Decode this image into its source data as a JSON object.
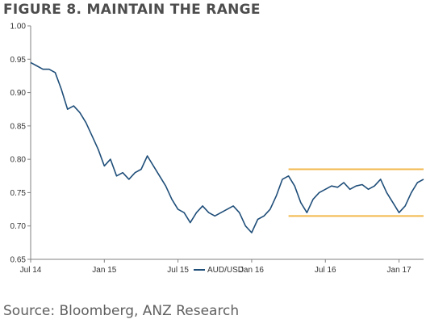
{
  "title": "FIGURE 8. MAINTAIN THE RANGE",
  "source": "Source: Bloomberg, ANZ Research",
  "colors": {
    "series": "#1f4e79",
    "range_band": "#f2b84b",
    "axis": "#808080"
  },
  "chart_data": {
    "type": "line",
    "title": "FIGURE 8. MAINTAIN THE RANGE",
    "xlabel": "",
    "ylabel": "",
    "ylim": [
      0.65,
      1.0
    ],
    "yticks": [
      1.0,
      0.95,
      0.9,
      0.85,
      0.8,
      0.75,
      0.7,
      0.65
    ],
    "ytick_labels": [
      "1.00",
      "0.95",
      "0.90",
      "0.85",
      "0.80",
      "0.75",
      "0.70",
      "0.65"
    ],
    "xlim": [
      0,
      32
    ],
    "xticks": [
      0,
      6,
      12,
      18,
      24,
      30
    ],
    "xtick_labels": [
      "Jul 14",
      "Jan 15",
      "Jul 15",
      "Jan 16",
      "Jul 16",
      "Jan 17"
    ],
    "x_unit": "months since Jul 2014",
    "grid": false,
    "legend": "bottom-center",
    "series": [
      {
        "name": "AUD/USD",
        "x": [
          0,
          0.5,
          1,
          1.5,
          2,
          2.5,
          3,
          3.5,
          4,
          4.5,
          5,
          5.5,
          6,
          6.5,
          7,
          7.5,
          8,
          8.5,
          9,
          9.5,
          10,
          10.5,
          11,
          11.5,
          12,
          12.5,
          13,
          13.5,
          14,
          14.5,
          15,
          15.5,
          16,
          16.5,
          17,
          17.5,
          18,
          18.5,
          19,
          19.5,
          20,
          20.5,
          21,
          21.5,
          22,
          22.5,
          23,
          23.5,
          24,
          24.5,
          25,
          25.5,
          26,
          26.5,
          27,
          27.5,
          28,
          28.5,
          29,
          29.5,
          30,
          30.5,
          31,
          31.5,
          32
        ],
        "values": [
          0.945,
          0.94,
          0.935,
          0.935,
          0.93,
          0.905,
          0.875,
          0.88,
          0.87,
          0.855,
          0.835,
          0.815,
          0.79,
          0.8,
          0.775,
          0.78,
          0.77,
          0.78,
          0.785,
          0.805,
          0.79,
          0.775,
          0.76,
          0.74,
          0.725,
          0.72,
          0.705,
          0.72,
          0.73,
          0.72,
          0.715,
          0.72,
          0.725,
          0.73,
          0.72,
          0.7,
          0.69,
          0.71,
          0.715,
          0.725,
          0.745,
          0.77,
          0.775,
          0.76,
          0.735,
          0.72,
          0.74,
          0.75,
          0.755,
          0.76,
          0.758,
          0.765,
          0.755,
          0.76,
          0.762,
          0.755,
          0.76,
          0.77,
          0.75,
          0.735,
          0.72,
          0.73,
          0.75,
          0.765,
          0.77
        ]
      }
    ],
    "annotations": [
      {
        "type": "range_band",
        "x_start": 21,
        "x_end": 32,
        "y_low": 0.715,
        "y_high": 0.785
      }
    ]
  }
}
